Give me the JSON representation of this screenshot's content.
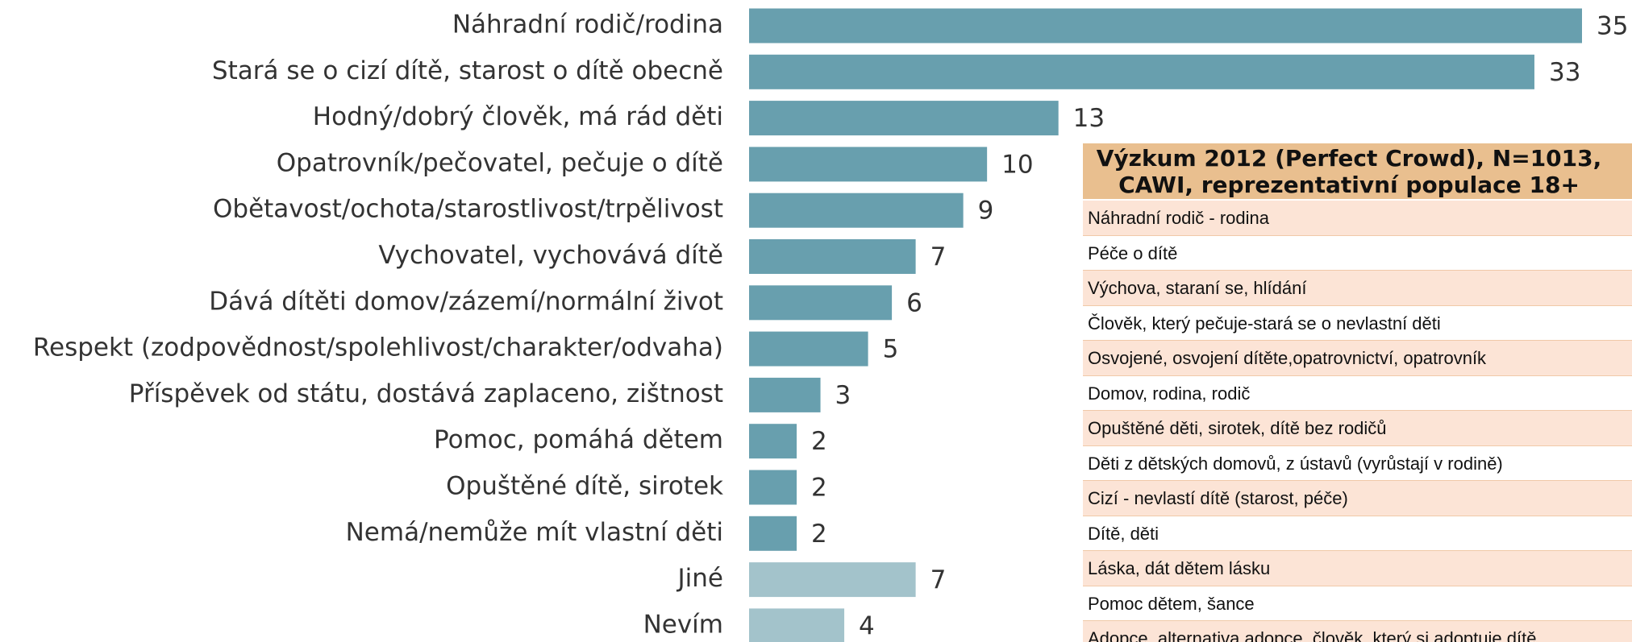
{
  "chart_data": {
    "type": "bar",
    "orientation": "horizontal",
    "categories": [
      "Náhradní rodič/rodina",
      "Stará se o cizí dítě, starost o dítě obecně",
      "Hodný/dobrý člověk, má rád děti",
      "Opatrovník/pečovatel, pečuje o dítě",
      "Obětavost/ochota/starostlivost/trpělivost",
      "Vychovatel, vychovává dítě",
      "Dává dítěti domov/zázemí/normální život",
      "Respekt (zodpovědnost/spolehlivost/charakter/odvaha)",
      "Příspěvek od státu, dostává zaplaceno, zištnost",
      "Pomoc, pomáhá dětem",
      "Opuštěné dítě, sirotek",
      "Nemá/nemůže mít vlastní děti",
      "Jiné",
      "Nevím"
    ],
    "values": [
      35,
      33,
      13,
      10,
      9,
      7,
      6,
      5,
      3,
      2,
      2,
      2,
      7,
      4
    ],
    "colors": [
      "#689fae",
      "#689fae",
      "#689fae",
      "#689fae",
      "#689fae",
      "#689fae",
      "#689fae",
      "#689fae",
      "#689fae",
      "#689fae",
      "#689fae",
      "#689fae",
      "#a3c3cb",
      "#a3c3cb"
    ],
    "xlim": [
      0,
      35
    ]
  },
  "table": {
    "title": "Výzkum 2012 (Perfect Crowd), N=1013, CAWI, reprezentativní populace 18+",
    "rows": [
      "Náhradní rodič - rodina",
      "Péče o dítě",
      "Výchova, staraní se, hlídání",
      "Člověk, který pečuje-stará se o nevlastní děti",
      "Osvojené, osvojení dítěte,opatrovnictví, opatrovník",
      "Domov, rodina, rodič",
      "Opuštěné děti, sirotek, dítě bez rodičů",
      "Děti z dětských domovů, z ústavů (vyrůstají v rodině)",
      "Cizí - nevlastí dítě (starost, péče)",
      "Dítě, děti",
      "Láska, dát dětem lásku",
      "Pomoc dětem, šance",
      "Adopce, alternativa adopce, člověk, který si adoptuje dítě"
    ]
  }
}
